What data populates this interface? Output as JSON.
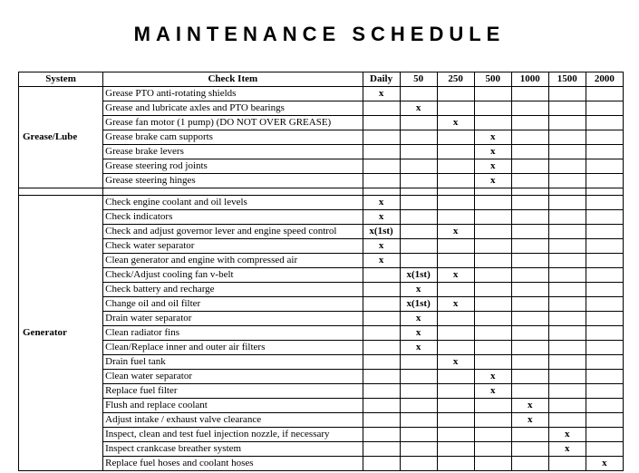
{
  "title": "MAINTENANCE SCHEDULE",
  "columns": [
    "System",
    "Check Item",
    "Daily",
    "50",
    "250",
    "500",
    "1000",
    "1500",
    "2000"
  ],
  "sections": [
    {
      "system": "Grease/Lube",
      "rows": [
        {
          "item": "Grease PTO anti-rotating shields",
          "marks": [
            "x",
            "",
            "",
            "",
            "",
            "",
            ""
          ]
        },
        {
          "item": "Grease and lubricate axles and PTO bearings",
          "marks": [
            "",
            "x",
            "",
            "",
            "",
            "",
            ""
          ]
        },
        {
          "item": "Grease fan motor (1 pump) (DO NOT OVER GREASE)",
          "marks": [
            "",
            "",
            "x",
            "",
            "",
            "",
            ""
          ]
        },
        {
          "item": "Grease brake cam supports",
          "marks": [
            "",
            "",
            "",
            "x",
            "",
            "",
            ""
          ]
        },
        {
          "item": "Grease brake levers",
          "marks": [
            "",
            "",
            "",
            "x",
            "",
            "",
            ""
          ]
        },
        {
          "item": "Grease steering rod joints",
          "marks": [
            "",
            "",
            "",
            "x",
            "",
            "",
            ""
          ]
        },
        {
          "item": "Grease steering hinges",
          "marks": [
            "",
            "",
            "",
            "x",
            "",
            "",
            ""
          ]
        }
      ]
    },
    {
      "system": "Generator",
      "rows": [
        {
          "item": "Check engine coolant and oil levels",
          "marks": [
            "x",
            "",
            "",
            "",
            "",
            "",
            ""
          ]
        },
        {
          "item": "Check indicators",
          "marks": [
            "x",
            "",
            "",
            "",
            "",
            "",
            ""
          ]
        },
        {
          "item": "Check and adjust governor lever and engine speed control",
          "marks": [
            "x(1st)",
            "",
            "x",
            "",
            "",
            "",
            ""
          ]
        },
        {
          "item": "Check water separator",
          "marks": [
            "x",
            "",
            "",
            "",
            "",
            "",
            ""
          ]
        },
        {
          "item": "Clean generator and engine with compressed air",
          "marks": [
            "x",
            "",
            "",
            "",
            "",
            "",
            ""
          ]
        },
        {
          "item": "Check/Adjust cooling fan v-belt",
          "marks": [
            "",
            "x(1st)",
            "x",
            "",
            "",
            "",
            ""
          ]
        },
        {
          "item": "Check battery and recharge",
          "marks": [
            "",
            "x",
            "",
            "",
            "",
            "",
            ""
          ]
        },
        {
          "item": "Change oil and oil filter",
          "marks": [
            "",
            "x(1st)",
            "x",
            "",
            "",
            "",
            ""
          ]
        },
        {
          "item": "Drain water separator",
          "marks": [
            "",
            "x",
            "",
            "",
            "",
            "",
            ""
          ]
        },
        {
          "item": "Clean radiator fins",
          "marks": [
            "",
            "x",
            "",
            "",
            "",
            "",
            ""
          ]
        },
        {
          "item": "Clean/Replace inner and outer air filters",
          "marks": [
            "",
            "x",
            "",
            "",
            "",
            "",
            ""
          ]
        },
        {
          "item": "Drain fuel tank",
          "marks": [
            "",
            "",
            "x",
            "",
            "",
            "",
            ""
          ]
        },
        {
          "item": "Clean water separator",
          "marks": [
            "",
            "",
            "",
            "x",
            "",
            "",
            ""
          ]
        },
        {
          "item": "Replace fuel filter",
          "marks": [
            "",
            "",
            "",
            "x",
            "",
            "",
            ""
          ]
        },
        {
          "item": "Flush and replace coolant",
          "marks": [
            "",
            "",
            "",
            "",
            "x",
            "",
            ""
          ]
        },
        {
          "item": "Adjust intake / exhaust valve clearance",
          "marks": [
            "",
            "",
            "",
            "",
            "x",
            "",
            ""
          ]
        },
        {
          "item": "Inspect, clean and test fuel injection nozzle, if necessary",
          "marks": [
            "",
            "",
            "",
            "",
            "",
            "x",
            ""
          ]
        },
        {
          "item": "Inspect crankcase breather system",
          "marks": [
            "",
            "",
            "",
            "",
            "",
            "x",
            ""
          ]
        },
        {
          "item": "Replace fuel hoses and coolant hoses",
          "marks": [
            "",
            "",
            "",
            "",
            "",
            "",
            "x"
          ]
        }
      ]
    }
  ]
}
